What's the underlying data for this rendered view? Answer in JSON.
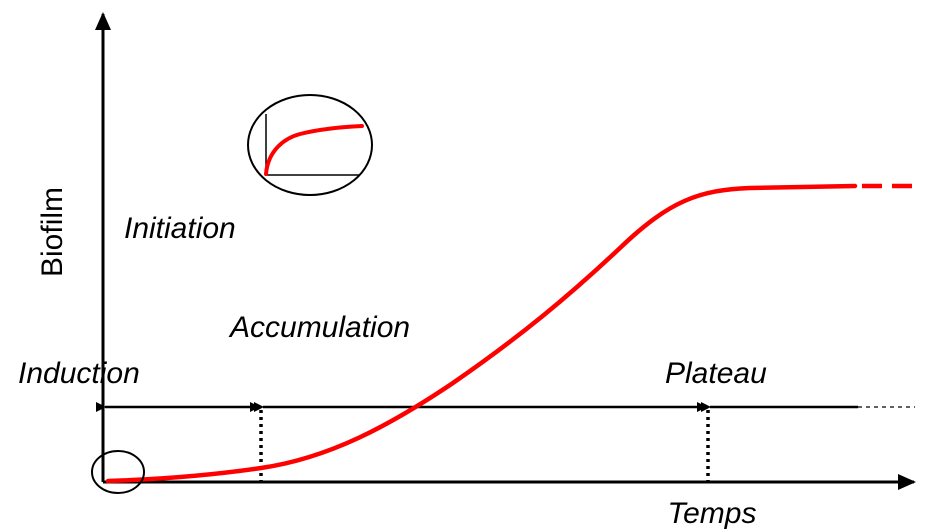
{
  "axes": {
    "y_label": "Biofilm",
    "x_label": "Temps",
    "x_label_color": "#1e7a4a"
  },
  "phases": {
    "induction": "Induction",
    "initiation": "Initiation",
    "accumulation": "Accumulation",
    "plateau": "Plateau"
  },
  "colors": {
    "curve": "#ff0000",
    "axis": "#000000"
  }
}
